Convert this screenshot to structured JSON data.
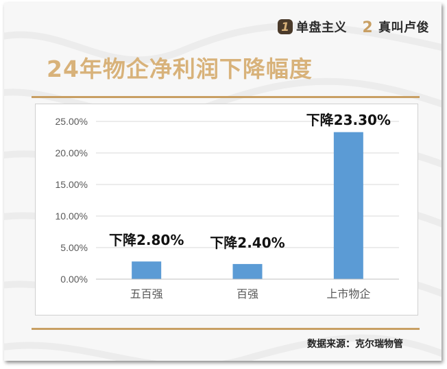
{
  "header": {
    "brand_items": [
      {
        "badge": "1",
        "label": "单盘主义",
        "badge_color": "#4a3a2a"
      },
      {
        "badge": "2",
        "label": "真叫卢俊",
        "badge_color": "#c89f63"
      }
    ],
    "title": "24年物企净利润下降幅度"
  },
  "footer": {
    "source": "数据来源：克尔瑞物管"
  },
  "colors": {
    "bar": "#5b9bd5",
    "title": "#d8b27a",
    "rule": "#c89f63"
  },
  "chart_data": {
    "type": "bar",
    "title": "",
    "xlabel": "",
    "ylabel": "",
    "categories": [
      "五百强",
      "百强",
      "上市物企"
    ],
    "values": [
      2.8,
      2.4,
      23.3
    ],
    "data_labels": [
      "下降2.80%",
      "下降2.40%",
      "下降23.30%"
    ],
    "ylim": [
      0,
      25
    ],
    "yticks": [
      "0.00%",
      "5.00%",
      "10.00%",
      "15.00%",
      "20.00%",
      "25.00%"
    ],
    "ytick_values": [
      0,
      5,
      10,
      15,
      20,
      25
    ],
    "grid": true,
    "legend": "none"
  }
}
